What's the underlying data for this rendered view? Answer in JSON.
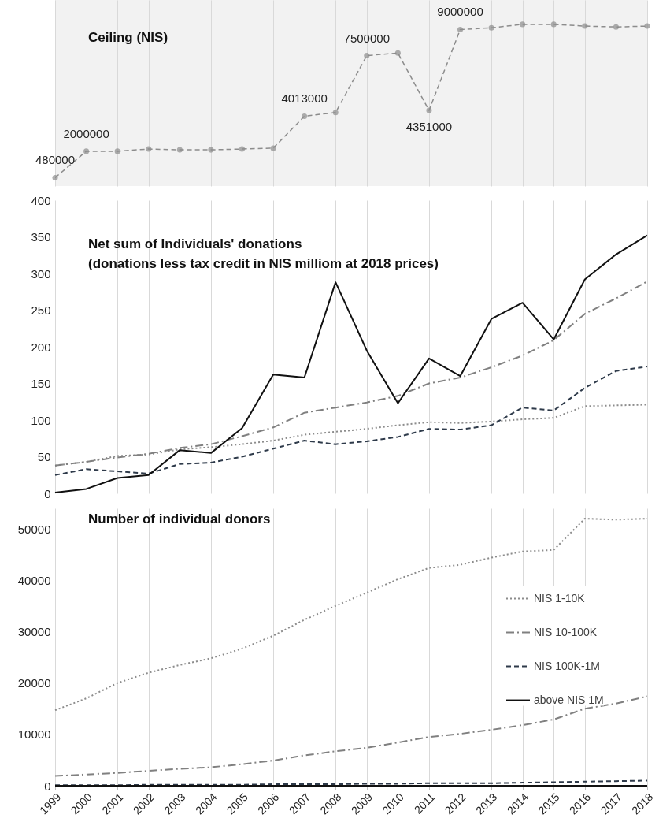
{
  "chart_data": [
    {
      "type": "line",
      "title": "Ceiling (NIS)",
      "ylim": [
        0,
        10700000
      ],
      "categories": [
        "1999",
        "2000",
        "2001",
        "2002",
        "2003",
        "2004",
        "2005",
        "2006",
        "2007",
        "2008",
        "2009",
        "2010",
        "2011",
        "2012",
        "2013",
        "2014",
        "2015",
        "2016",
        "2017",
        "2018"
      ],
      "values": [
        480000,
        2000000,
        2000000,
        2130000,
        2080000,
        2080000,
        2130000,
        2180000,
        4013000,
        4230000,
        7500000,
        7650000,
        4351000,
        9000000,
        9100000,
        9300000,
        9300000,
        9200000,
        9150000,
        9200000
      ],
      "value_labels": [
        "480000",
        "2000000",
        null,
        null,
        null,
        null,
        null,
        null,
        "4013000",
        null,
        "7500000",
        null,
        "4351000",
        "9000000",
        null,
        null,
        null,
        null,
        null,
        null
      ],
      "color": "#8c8c8c",
      "marker": "circle",
      "line_style": "dashed",
      "grid": "x",
      "tick_labels": false
    },
    {
      "type": "line",
      "title": "Net sum of Individuals' donations",
      "subtitle": "(donations less tax credit in NIS milliom at 2018 prices)",
      "categories": [
        "1999",
        "2000",
        "2001",
        "2002",
        "2003",
        "2004",
        "2005",
        "2006",
        "2007",
        "2008",
        "2009",
        "2010",
        "2011",
        "2012",
        "2013",
        "2014",
        "2015",
        "2016",
        "2017",
        "2018"
      ],
      "ylim": [
        0,
        400
      ],
      "yticks": [
        0,
        50,
        100,
        150,
        200,
        250,
        300,
        350,
        400
      ],
      "grid": "x",
      "tick_labels": "y",
      "series": [
        {
          "color": "#8c8c8c",
          "line_style": "dotted",
          "values": [
            38,
            43,
            51,
            53,
            60,
            63,
            67,
            72,
            80,
            84,
            88,
            93,
            97,
            96,
            98,
            101,
            103,
            119,
            120,
            121
          ]
        },
        {
          "color": "#808080",
          "line_style": "dashdot",
          "values": [
            38,
            43,
            49,
            54,
            62,
            67,
            78,
            90,
            110,
            117,
            124,
            133,
            150,
            158,
            172,
            188,
            209,
            245,
            266,
            289
          ]
        },
        {
          "color": "#2e3a4a",
          "line_style": "dashed",
          "values": [
            25,
            33,
            30,
            27,
            40,
            42,
            50,
            61,
            72,
            67,
            71,
            77,
            88,
            87,
            93,
            117,
            113,
            144,
            167,
            173
          ]
        },
        {
          "color": "#111111",
          "line_style": "solid",
          "values": [
            1,
            6,
            21,
            25,
            59,
            55,
            89,
            162,
            158,
            288,
            195,
            123,
            184,
            160,
            238,
            260,
            210,
            292,
            326,
            352
          ]
        }
      ]
    },
    {
      "type": "line",
      "title": "Number of individual donors",
      "categories": [
        "1999",
        "2000",
        "2001",
        "2002",
        "2003",
        "2004",
        "2005",
        "2006",
        "2007",
        "2008",
        "2009",
        "2010",
        "2011",
        "2012",
        "2013",
        "2014",
        "2015",
        "2016",
        "2017",
        "2018"
      ],
      "ylim": [
        0,
        54000
      ],
      "yticks": [
        0,
        10000,
        20000,
        30000,
        40000,
        50000
      ],
      "grid": "x",
      "legend": "right",
      "series": [
        {
          "name": "NIS 1-10K",
          "color": "#8c8c8c",
          "line_style": "dotted",
          "values": [
            14700,
            17000,
            20000,
            22000,
            23500,
            24800,
            26700,
            29200,
            32300,
            35000,
            37600,
            40200,
            42400,
            43000,
            44400,
            45600,
            45900,
            52000,
            51800,
            52000
          ]
        },
        {
          "name": "NIS 10-100K",
          "color": "#808080",
          "line_style": "dashdot",
          "values": [
            1900,
            2200,
            2500,
            2900,
            3300,
            3600,
            4200,
            4900,
            5900,
            6700,
            7400,
            8400,
            9500,
            10100,
            10900,
            11800,
            12900,
            15000,
            16000,
            17400
          ]
        },
        {
          "name": "NIS 100K-1M",
          "color": "#2e3a4a",
          "line_style": "dashed",
          "values": [
            100,
            100,
            100,
            200,
            200,
            200,
            200,
            300,
            300,
            300,
            400,
            400,
            500,
            500,
            500,
            600,
            700,
            800,
            900,
            1000
          ]
        },
        {
          "name": "above NIS 1M",
          "color": "#111111",
          "line_style": "solid",
          "values": [
            0,
            0,
            0,
            0,
            0,
            0,
            0,
            0,
            0,
            0,
            0,
            0,
            0,
            0,
            0,
            0,
            0,
            0,
            0,
            0
          ]
        }
      ]
    }
  ]
}
